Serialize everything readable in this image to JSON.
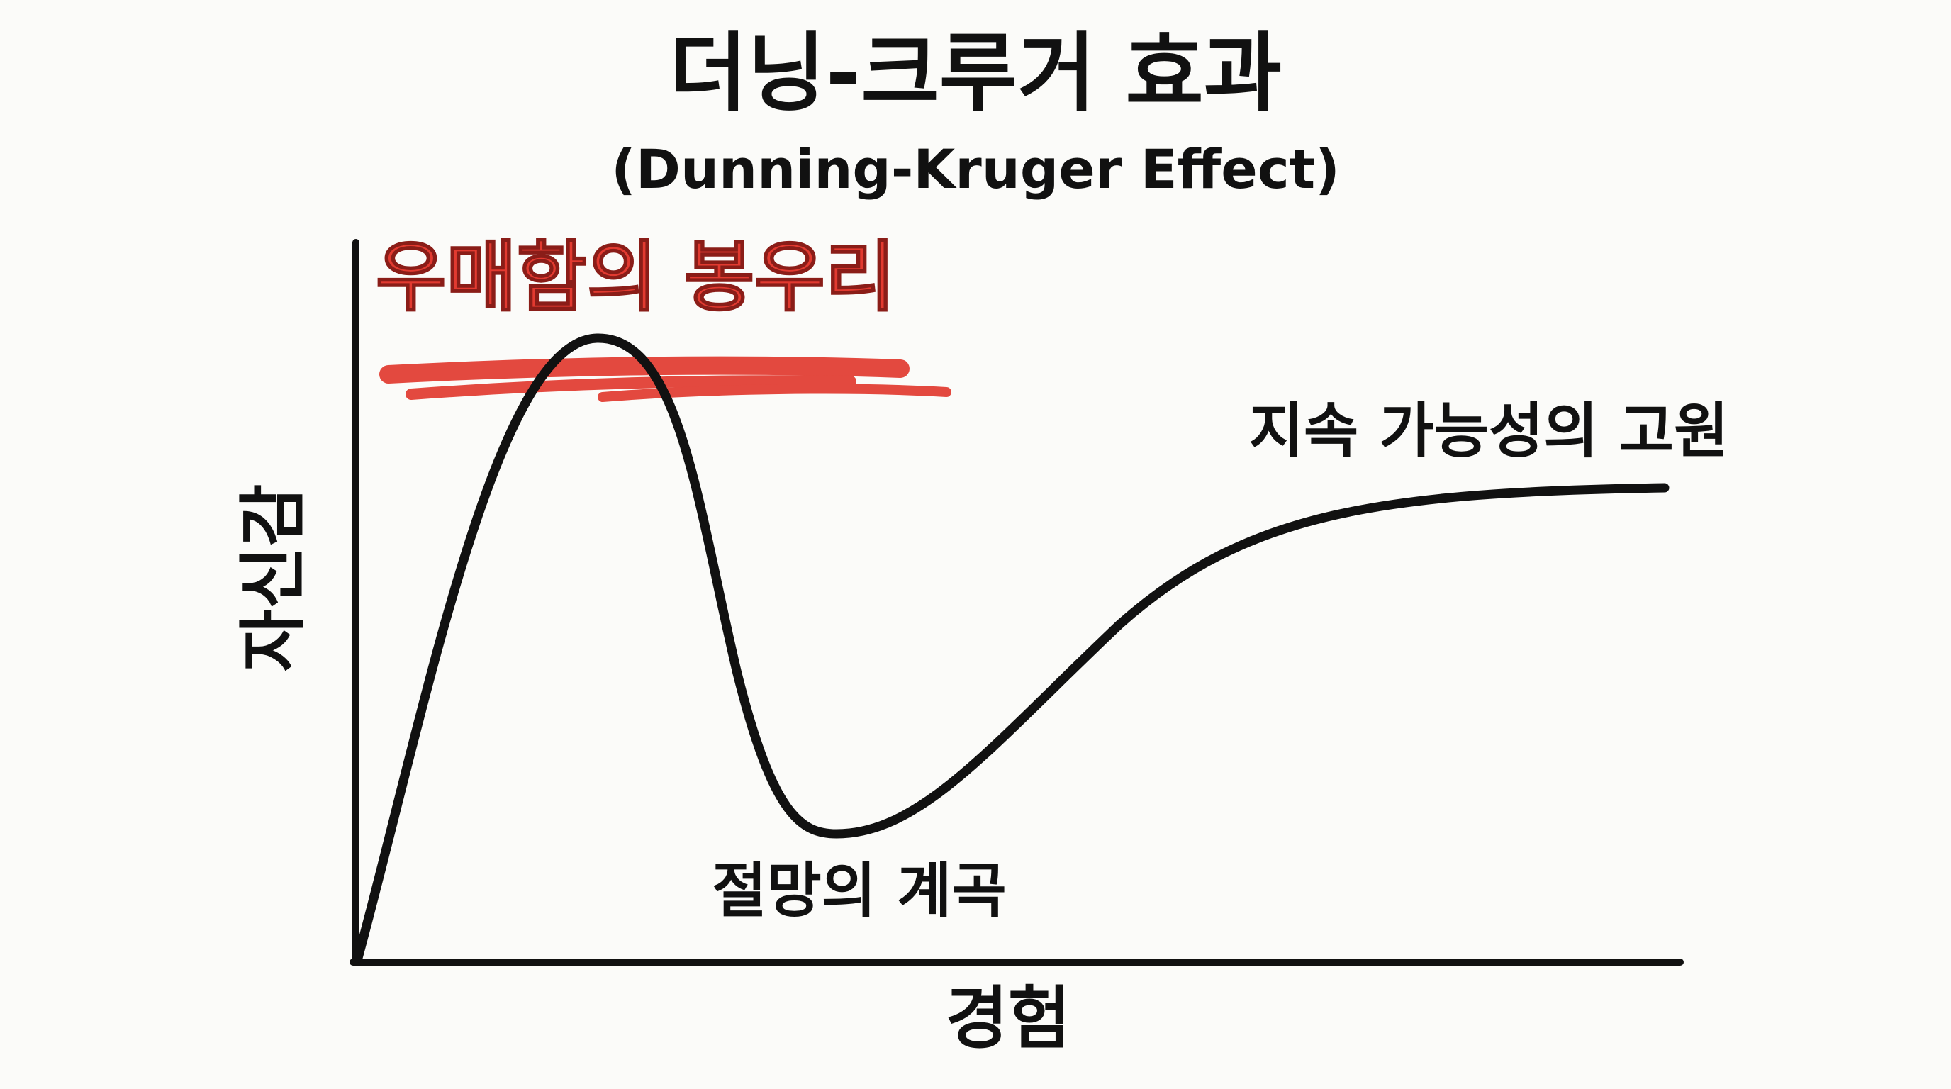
{
  "header": {
    "title": "더닝-크루거 효과",
    "subtitle": "(Dunning-Kruger Effect)"
  },
  "axes": {
    "y_label": "자신감",
    "x_label": "경험"
  },
  "annotations": {
    "peak": "우매함의 봉우리",
    "valley": "절망의 계곡",
    "plateau": "지속 가능성의 고원"
  }
}
